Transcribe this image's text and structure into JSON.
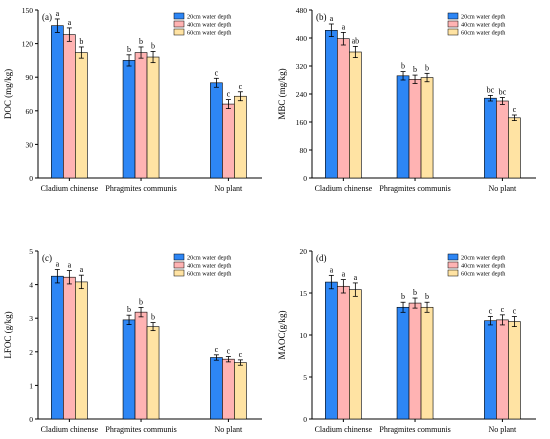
{
  "figure": {
    "legend_entries": [
      "20cm water depth",
      "40cm water depth",
      "60cm water depth"
    ],
    "colors": {
      "series": [
        "#2D86F5",
        "#FFB3B3",
        "#FFE3A3"
      ],
      "axis": "#000000"
    }
  },
  "chart_data": [
    {
      "type": "bar",
      "panel_label": "(a)",
      "title": "",
      "ylabel": "DOC (mg/kg)",
      "xlabel": "",
      "categories": [
        "Cladium chinense",
        "Phragmites communis",
        "No plant"
      ],
      "ylim": [
        0,
        150
      ],
      "yticks": [
        0,
        30,
        60,
        90,
        120,
        150
      ],
      "grid": false,
      "legend_position": "top-right",
      "series": [
        {
          "name": "20cm water depth",
          "values": [
            136,
            105,
            85
          ],
          "errors": [
            6,
            5,
            4
          ],
          "letters": [
            "a",
            "b",
            "c"
          ]
        },
        {
          "name": "40cm water depth",
          "values": [
            128,
            112,
            66
          ],
          "errors": [
            6,
            5,
            4
          ],
          "letters": [
            "a",
            "b",
            "c"
          ]
        },
        {
          "name": "60cm water depth",
          "values": [
            112,
            108,
            73
          ],
          "errors": [
            5,
            5,
            4
          ],
          "letters": [
            "b",
            "b",
            "c"
          ]
        }
      ]
    },
    {
      "type": "bar",
      "panel_label": "(b)",
      "title": "",
      "ylabel": "MBC (mg/kg)",
      "xlabel": "",
      "categories": [
        "Cladium chinense",
        "Phragmites communis",
        "No plant"
      ],
      "ylim": [
        0,
        480
      ],
      "yticks": [
        0,
        80,
        160,
        240,
        320,
        400,
        480
      ],
      "grid": false,
      "legend_position": "top-right",
      "series": [
        {
          "name": "20cm water depth",
          "values": [
            422,
            292,
            228
          ],
          "errors": [
            18,
            12,
            8
          ],
          "letters": [
            "a",
            "b",
            "bc"
          ]
        },
        {
          "name": "40cm water depth",
          "values": [
            398,
            282,
            220
          ],
          "errors": [
            18,
            12,
            10
          ],
          "letters": [
            "a",
            "b",
            "bc"
          ]
        },
        {
          "name": "60cm water depth",
          "values": [
            360,
            287,
            172
          ],
          "errors": [
            16,
            12,
            8
          ],
          "letters": [
            "ab",
            "b",
            "c"
          ]
        }
      ]
    },
    {
      "type": "bar",
      "panel_label": "(c)",
      "title": "",
      "ylabel": "LFOC (g/kg)",
      "xlabel": "",
      "categories": [
        "Cladium chinense",
        "Phragmites communis",
        "No plant"
      ],
      "ylim": [
        0,
        5
      ],
      "yticks": [
        0,
        1,
        2,
        3,
        4,
        5
      ],
      "grid": false,
      "legend_position": "top-right",
      "series": [
        {
          "name": "20cm water depth",
          "values": [
            4.25,
            2.95,
            1.83
          ],
          "errors": [
            0.2,
            0.14,
            0.08
          ],
          "letters": [
            "a",
            "b",
            "c"
          ]
        },
        {
          "name": "40cm water depth",
          "values": [
            4.22,
            3.18,
            1.78
          ],
          "errors": [
            0.2,
            0.14,
            0.08
          ],
          "letters": [
            "a",
            "b",
            "c"
          ]
        },
        {
          "name": "60cm water depth",
          "values": [
            4.08,
            2.75,
            1.68
          ],
          "errors": [
            0.2,
            0.12,
            0.08
          ],
          "letters": [
            "a",
            "b",
            "c"
          ]
        }
      ]
    },
    {
      "type": "bar",
      "panel_label": "(d)",
      "title": "",
      "ylabel": "MAOC(g/kg)",
      "xlabel": "",
      "categories": [
        "Cladium chinense",
        "Phragmites communis",
        "No plant"
      ],
      "ylim": [
        0,
        20
      ],
      "yticks": [
        0,
        5,
        10,
        15,
        20
      ],
      "grid": false,
      "legend_position": "top-right",
      "series": [
        {
          "name": "20cm water depth",
          "values": [
            16.3,
            13.3,
            11.7
          ],
          "errors": [
            0.8,
            0.6,
            0.5
          ],
          "letters": [
            "a",
            "b",
            "c"
          ]
        },
        {
          "name": "40cm water depth",
          "values": [
            15.8,
            13.8,
            11.8
          ],
          "errors": [
            0.8,
            0.6,
            0.6
          ],
          "letters": [
            "a",
            "b",
            "c"
          ]
        },
        {
          "name": "60cm water depth",
          "values": [
            15.4,
            13.3,
            11.6
          ],
          "errors": [
            0.8,
            0.6,
            0.6
          ],
          "letters": [
            "a",
            "b",
            "c"
          ]
        }
      ]
    }
  ]
}
